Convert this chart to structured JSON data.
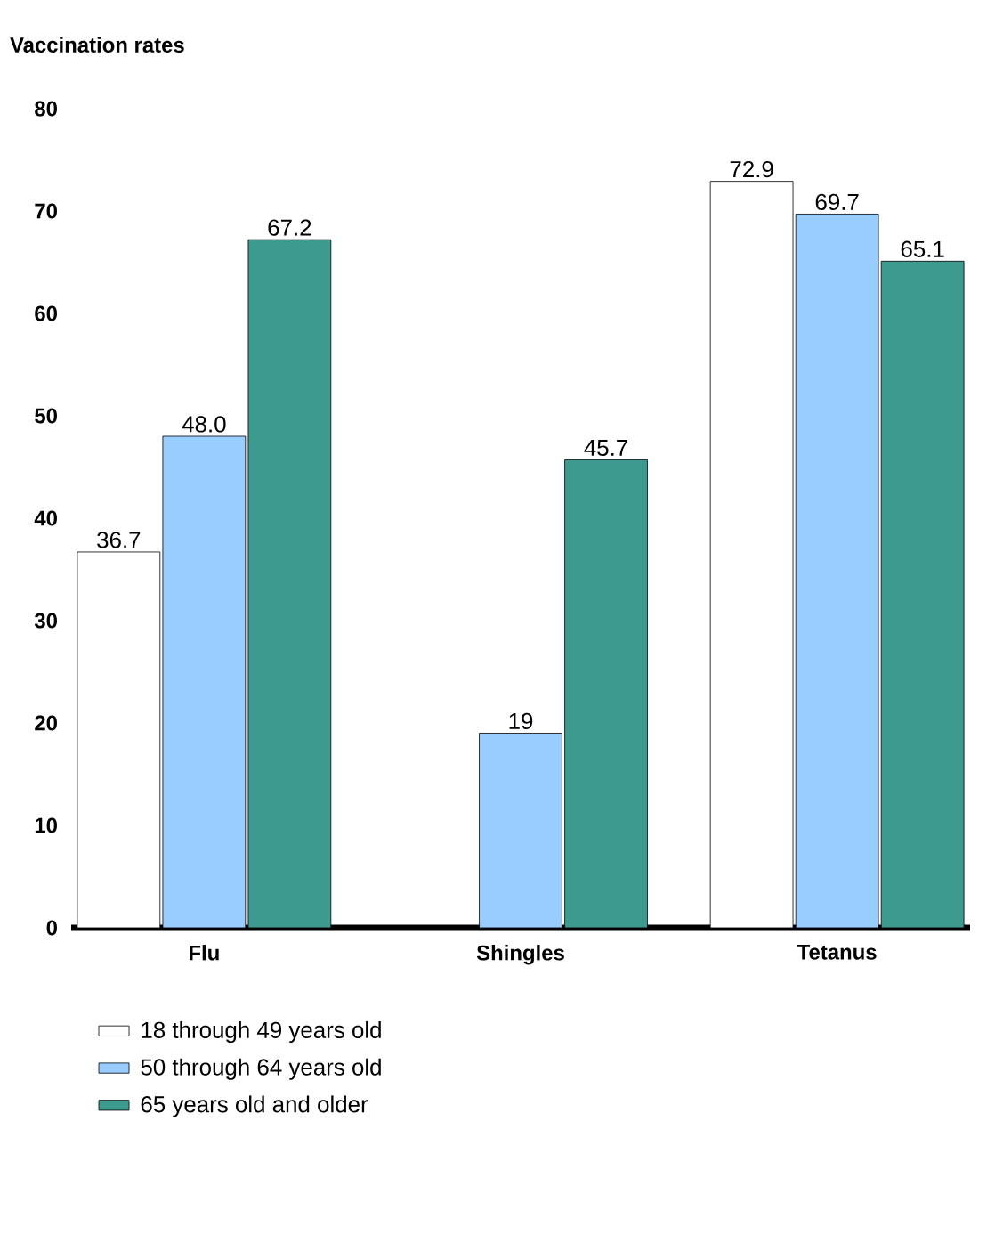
{
  "chart_data": {
    "type": "bar",
    "ylabel": "Vaccination rates",
    "categories": [
      "Flu",
      "Shingles",
      "Tetanus"
    ],
    "series": [
      {
        "name": "18 through 49 years old",
        "color": "#ffffff",
        "values": [
          36.7,
          null,
          72.9
        ],
        "value_labels": [
          "36.7",
          null,
          "72.9"
        ]
      },
      {
        "name": "50 through 64 years old",
        "color": "#99ccff",
        "values": [
          48.0,
          19,
          69.7
        ],
        "value_labels": [
          "48.0",
          "19",
          "69.7"
        ]
      },
      {
        "name": "65 years old and older",
        "color": "#3d9a8e",
        "values": [
          67.2,
          45.7,
          65.1
        ],
        "value_labels": [
          "67.2",
          "45.7",
          "65.1"
        ]
      }
    ],
    "ylim": [
      0,
      80
    ],
    "yticks": [
      0,
      10,
      20,
      30,
      40,
      50,
      60,
      70,
      80
    ],
    "grid": false,
    "legend": "bottom"
  }
}
